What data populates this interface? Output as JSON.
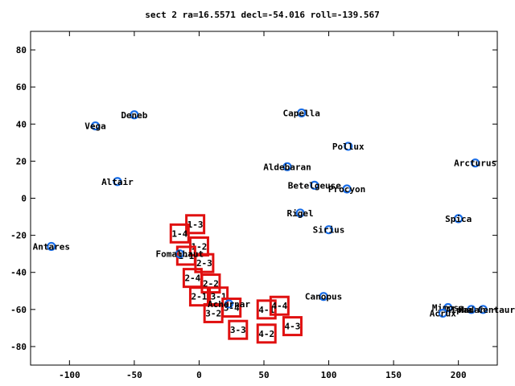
{
  "chart_data": {
    "type": "scatter",
    "title": "sect 2 ra=16.5571 decl=-54.016 roll=-139.567",
    "xlabel": "",
    "ylabel": "",
    "xlim": [
      -130,
      230
    ],
    "ylim": [
      -90,
      90
    ],
    "x_ticks": [
      -100,
      -50,
      0,
      50,
      100,
      150,
      200
    ],
    "y_ticks": [
      -80,
      -60,
      -40,
      -20,
      0,
      20,
      40,
      60,
      80
    ],
    "grid": false,
    "colors": {
      "star": "#1a6ee8",
      "box": "#e01010"
    },
    "stars": [
      {
        "name": "Vega",
        "x": -80,
        "y": 39
      },
      {
        "name": "Deneb",
        "x": -50,
        "y": 45
      },
      {
        "name": "Altair",
        "x": -63,
        "y": 9
      },
      {
        "name": "Antares",
        "x": -114,
        "y": -26
      },
      {
        "name": "Capella",
        "x": 79,
        "y": 46
      },
      {
        "name": "Pollux",
        "x": 115,
        "y": 28
      },
      {
        "name": "Aldebaran",
        "x": 68,
        "y": 17
      },
      {
        "name": "Betelgeuse",
        "x": 89,
        "y": 7
      },
      {
        "name": "Procyon",
        "x": 114,
        "y": 5
      },
      {
        "name": "Arcturus",
        "x": 213,
        "y": 19
      },
      {
        "name": "Rigel",
        "x": 78,
        "y": -8
      },
      {
        "name": "Sirius",
        "x": 100,
        "y": -17
      },
      {
        "name": "Spica",
        "x": 200,
        "y": -11
      },
      {
        "name": "Fomalhaut",
        "x": -15,
        "y": -30
      },
      {
        "name": "Canopus",
        "x": 96,
        "y": -53
      },
      {
        "name": "Achernar",
        "x": 23,
        "y": -57
      },
      {
        "name": "Mimosa",
        "x": 192,
        "y": -59
      },
      {
        "name": "Acrux",
        "x": 188,
        "y": -62
      },
      {
        "name": "Hadar",
        "x": 210,
        "y": -60
      },
      {
        "name": "Alpha Centauri",
        "x": 219,
        "y": -60
      }
    ],
    "boxes": [
      {
        "label": "1-3",
        "x": -3,
        "y": -14
      },
      {
        "label": "1-4",
        "x": -15,
        "y": -19
      },
      {
        "label": "1-2",
        "x": 0,
        "y": -26
      },
      {
        "label": "1-1",
        "x": -10,
        "y": -31
      },
      {
        "label": "2-3",
        "x": 4,
        "y": -35
      },
      {
        "label": "2-4",
        "x": -5,
        "y": -43
      },
      {
        "label": "2-2",
        "x": 9,
        "y": -46
      },
      {
        "label": "3-1",
        "x": 15,
        "y": -53
      },
      {
        "label": "2-1",
        "x": 0,
        "y": -53
      },
      {
        "label": "3-4",
        "x": 25,
        "y": -59
      },
      {
        "label": "3-2",
        "x": 11,
        "y": -62
      },
      {
        "label": "3-3",
        "x": 30,
        "y": -71
      },
      {
        "label": "4-1",
        "x": 52,
        "y": -60
      },
      {
        "label": "4-4",
        "x": 62,
        "y": -58
      },
      {
        "label": "4-3",
        "x": 72,
        "y": -69
      },
      {
        "label": "4-2",
        "x": 52,
        "y": -73
      }
    ]
  }
}
